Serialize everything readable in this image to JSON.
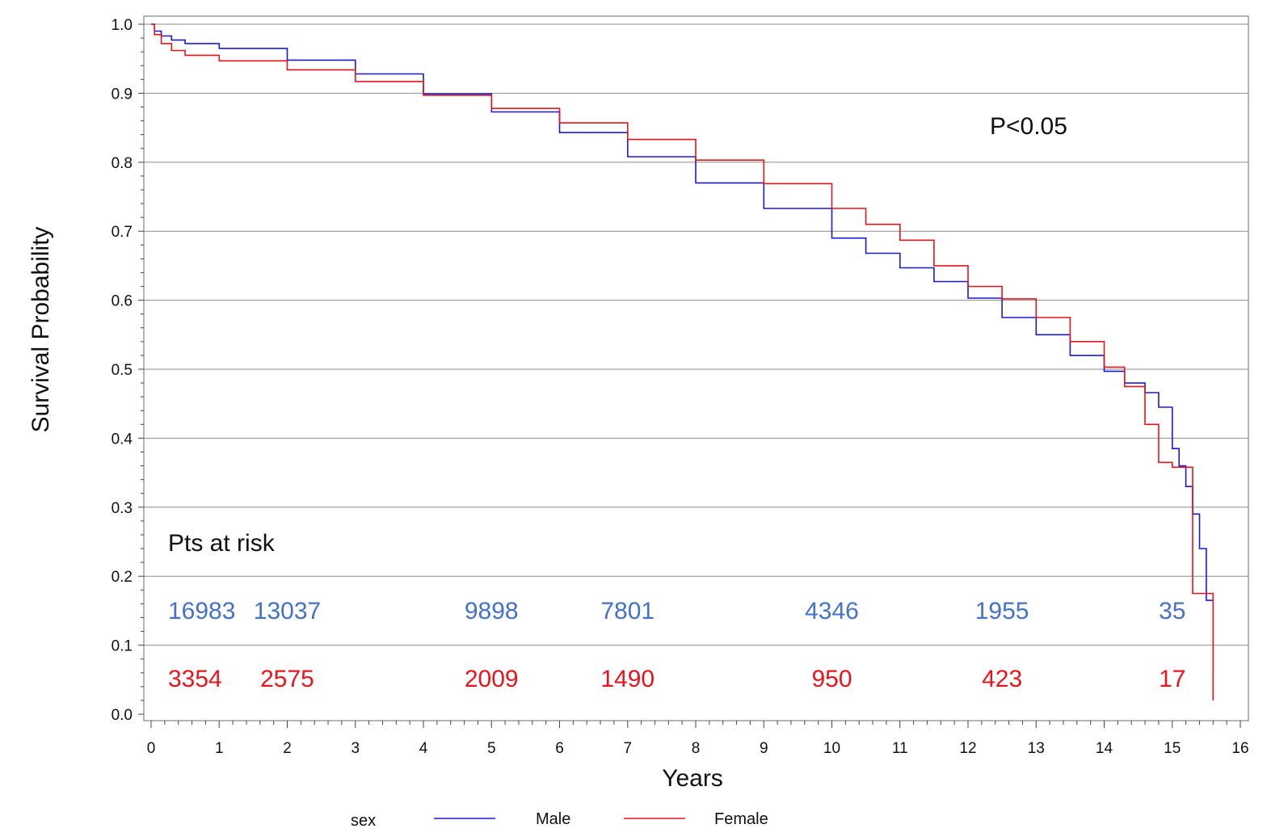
{
  "chart_data": {
    "type": "line",
    "xlabel": "Years",
    "ylabel": "Survival Probability",
    "xlim": [
      0,
      16
    ],
    "ylim": [
      0,
      1
    ],
    "x_ticks": [
      "0",
      "1",
      "2",
      "3",
      "4",
      "5",
      "6",
      "7",
      "8",
      "9",
      "10",
      "11",
      "12",
      "13",
      "14",
      "15",
      "16"
    ],
    "y_ticks": [
      "0.0",
      "0.1",
      "0.2",
      "0.3",
      "0.4",
      "0.5",
      "0.6",
      "0.7",
      "0.8",
      "0.9",
      "1.0"
    ],
    "grid": "horizontal",
    "step": true,
    "colors": {
      "male": "#1a1ad6",
      "female": "#e8141c",
      "risk_male": "#4472c4",
      "risk_female": "#e8141c"
    },
    "series": [
      {
        "name": "Male",
        "color": "#1a1ad6",
        "x": [
          0,
          0.05,
          0.15,
          0.3,
          0.5,
          1,
          2,
          3,
          4,
          5,
          6,
          7,
          8,
          9,
          10,
          10.5,
          11,
          11.5,
          12,
          12.5,
          13,
          13.5,
          14,
          14.3,
          14.6,
          14.8,
          15.0,
          15.1,
          15.2,
          15.3,
          15.4,
          15.5,
          15.6
        ],
        "y": [
          1.0,
          0.99,
          0.983,
          0.977,
          0.972,
          0.965,
          0.948,
          0.928,
          0.899,
          0.873,
          0.843,
          0.808,
          0.77,
          0.733,
          0.69,
          0.668,
          0.647,
          0.627,
          0.603,
          0.575,
          0.55,
          0.52,
          0.497,
          0.48,
          0.466,
          0.445,
          0.385,
          0.36,
          0.33,
          0.29,
          0.24,
          0.165,
          0.06
        ]
      },
      {
        "name": "Female",
        "color": "#e8141c",
        "x": [
          0,
          0.05,
          0.15,
          0.3,
          0.5,
          1,
          2,
          3,
          4,
          5,
          6,
          7,
          8,
          9,
          10,
          10.5,
          11,
          11.5,
          12,
          12.5,
          13,
          13.5,
          14,
          14.3,
          14.6,
          14.8,
          15.0,
          15.1,
          15.3,
          15.4,
          15.6
        ],
        "y": [
          1.0,
          0.985,
          0.972,
          0.962,
          0.955,
          0.947,
          0.934,
          0.917,
          0.897,
          0.878,
          0.857,
          0.833,
          0.803,
          0.769,
          0.733,
          0.71,
          0.687,
          0.65,
          0.62,
          0.602,
          0.575,
          0.54,
          0.503,
          0.475,
          0.42,
          0.365,
          0.358,
          0.358,
          0.175,
          0.175,
          0.02
        ]
      }
    ],
    "annotations": {
      "p_value": "P<0.05",
      "risk_title": "Pts at risk"
    },
    "at_risk": {
      "x": [
        0,
        2,
        5,
        7,
        10,
        12.5,
        15
      ],
      "male": [
        "16983",
        "13037",
        "9898",
        "7801",
        "4346",
        "1955",
        "35"
      ],
      "female": [
        "3354",
        "2575",
        "2009",
        "1490",
        "950",
        "423",
        "17"
      ]
    },
    "legend": {
      "title": "sex",
      "position": "bottom",
      "items": [
        "Male",
        "Female"
      ]
    }
  }
}
